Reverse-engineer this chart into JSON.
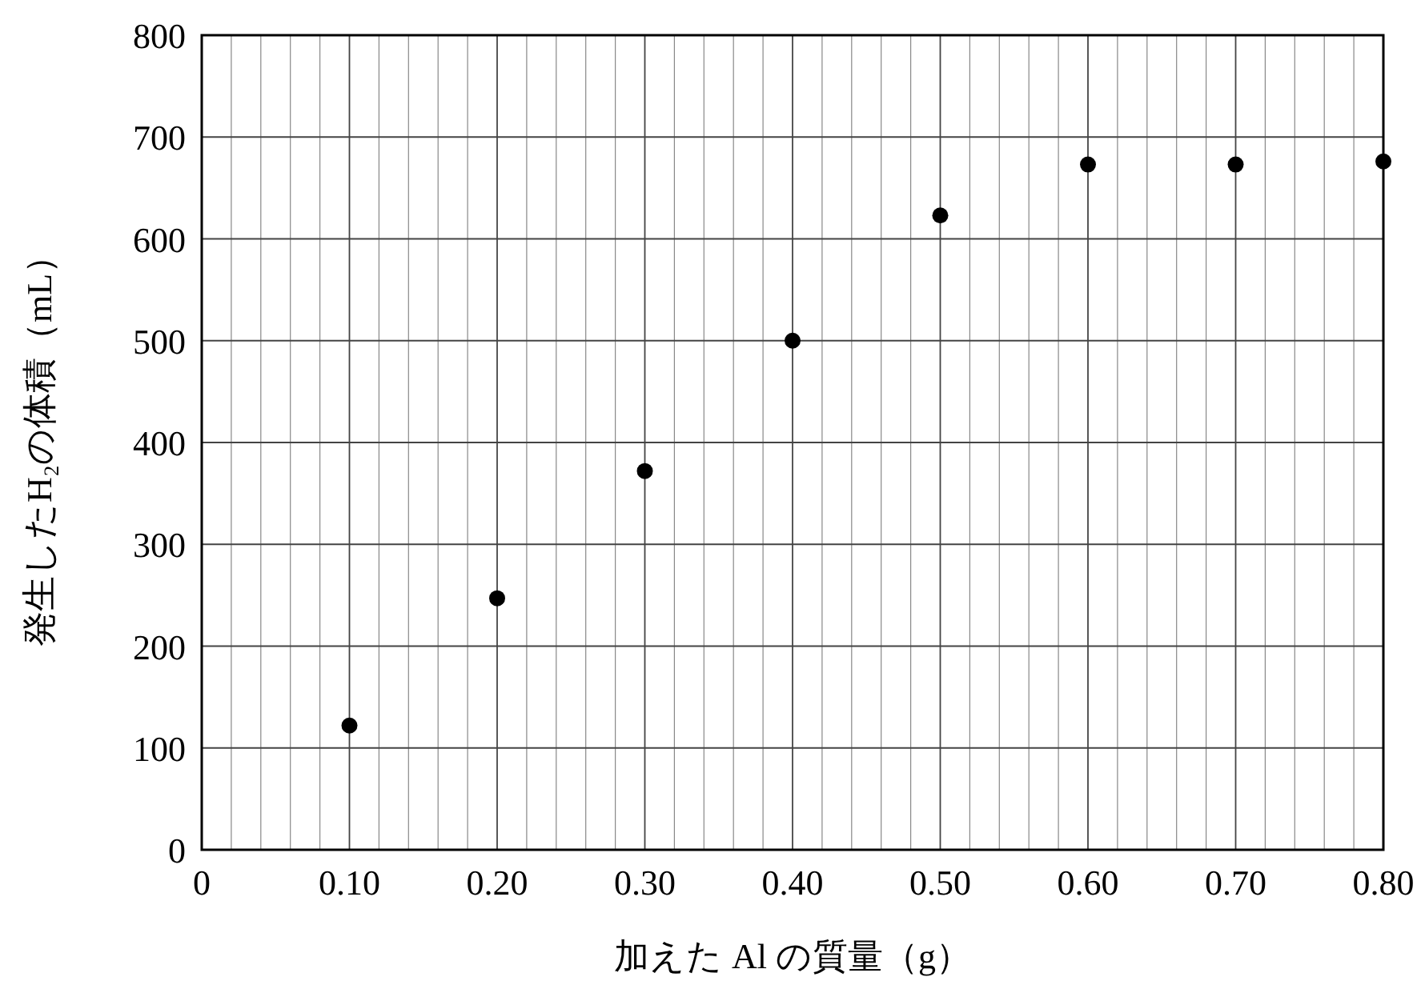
{
  "chart_data": {
    "type": "scatter",
    "xlabel": "加えた Al の質量（g）",
    "ylabel": "発生したH₂の体積（mL）",
    "x": [
      0.1,
      0.2,
      0.3,
      0.4,
      0.5,
      0.6,
      0.7,
      0.8
    ],
    "series": [
      {
        "color": "#000000",
        "values": [
          122,
          247,
          372,
          500,
          623,
          673,
          673,
          676
        ]
      }
    ],
    "marker": "circle",
    "grid": true,
    "xlim": [
      0,
      0.8
    ],
    "ylim": [
      0,
      800
    ],
    "xticks": [
      0,
      {
        "value": 0.02,
        "label": null
      },
      {
        "value": 0.04,
        "label": null
      },
      {
        "value": 0.06,
        "label": null
      },
      {
        "value": 0.08,
        "label": null
      },
      {
        "value": 0.1,
        "label": "0.10"
      },
      {
        "value": 0.12,
        "label": null
      },
      {
        "value": 0.14,
        "label": null
      },
      {
        "value": 0.16,
        "label": null
      },
      {
        "value": 0.18,
        "label": null
      },
      {
        "value": 0.2,
        "label": "0.20"
      },
      {
        "value": 0.22,
        "label": null
      },
      {
        "value": 0.24,
        "label": null
      },
      {
        "value": 0.26,
        "label": null
      },
      {
        "value": 0.28,
        "label": null
      },
      {
        "value": 0.3,
        "label": "0.30"
      },
      {
        "value": 0.32,
        "label": null
      },
      {
        "value": 0.34,
        "label": null
      },
      {
        "value": 0.36,
        "label": null
      },
      {
        "value": 0.38,
        "label": null
      },
      {
        "value": 0.4,
        "label": "0.40"
      },
      {
        "value": 0.42,
        "label": null
      },
      {
        "value": 0.44,
        "label": null
      },
      {
        "value": 0.46,
        "label": null
      },
      {
        "value": 0.48,
        "label": null
      },
      {
        "value": 0.5,
        "label": "0.50"
      },
      {
        "value": 0.52,
        "label": null
      },
      {
        "value": 0.54,
        "label": null
      },
      {
        "value": 0.56,
        "label": null
      },
      {
        "value": 0.58,
        "label": null
      },
      {
        "value": 0.6,
        "label": "0.60"
      },
      {
        "value": 0.62,
        "label": null
      },
      {
        "value": 0.64,
        "label": null
      },
      {
        "value": 0.66,
        "label": null
      },
      {
        "value": 0.68,
        "label": null
      },
      {
        "value": 0.7,
        "label": "0.70"
      },
      {
        "value": 0.72,
        "label": null
      },
      {
        "value": 0.74,
        "label": null
      },
      {
        "value": 0.76,
        "label": null
      },
      {
        "value": 0.78,
        "label": null
      },
      {
        "value": 0.8,
        "label": "0.80"
      }
    ],
    "yticks": [
      0,
      100,
      200,
      300,
      400,
      500,
      600,
      700,
      800
    ]
  }
}
